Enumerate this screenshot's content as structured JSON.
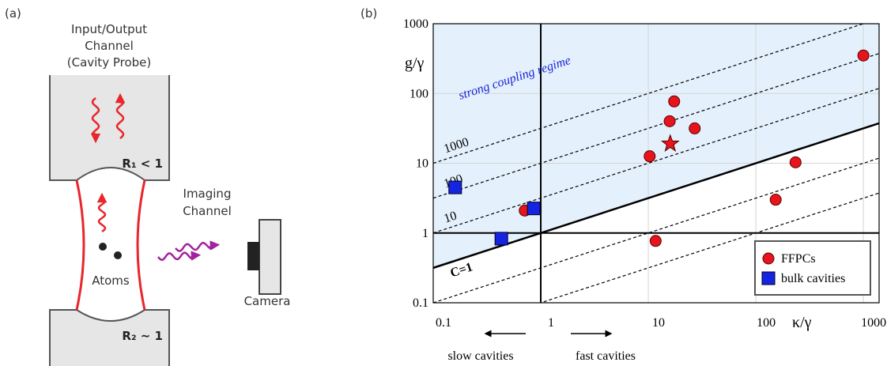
{
  "panel_a": {
    "label": "(a)",
    "io_channel": [
      "Input/Output",
      "Channel",
      "(Cavity Probe)"
    ],
    "r1": "R₁ < 1",
    "imaging_channel": [
      "Imaging",
      "Channel"
    ],
    "atoms": "Atoms",
    "camera": "Camera",
    "r2": "R₂ ~ 1"
  },
  "chart_data": {
    "type": "scatter",
    "panel_label": "(b)",
    "xlabel": "κ/γ",
    "ylabel": "g/γ",
    "xscale": "log",
    "yscale": "log",
    "xlim": [
      0.1,
      1400
    ],
    "ylim": [
      0.1,
      1000
    ],
    "xticks": [
      0.1,
      1,
      10,
      100,
      1000
    ],
    "yticks": [
      0.1,
      1,
      10,
      100,
      1000
    ],
    "grid": true,
    "region_label": "strong coupling regime",
    "cooperativity_lines": [
      {
        "C": 1,
        "label": "C=1",
        "style": "solid"
      },
      {
        "C": 10,
        "style": "dashed"
      },
      {
        "C": 100,
        "style": "dashed"
      },
      {
        "C": 1000,
        "style": "dashed"
      },
      {
        "C": 0.1,
        "style": "dashed"
      },
      {
        "C": 0.01,
        "style": "dashed"
      }
    ],
    "series": [
      {
        "name": "FFPCs",
        "color": "#e8141c",
        "marker": "circle",
        "x": [
          0.71,
          10.3,
          11.7,
          15.8,
          17.4,
          27,
          16,
          153,
          234,
          1000
        ],
        "values": [
          2.1,
          12.6,
          0.77,
          40,
          77,
          31.6,
          19,
          3.0,
          10.3,
          350
        ],
        "markers": [
          "circle",
          "circle",
          "circle",
          "circle",
          "circle",
          "circle",
          "star",
          "circle",
          "circle",
          "circle"
        ]
      },
      {
        "name": "bulk cavities",
        "color": "#1424e0",
        "marker": "square",
        "x": [
          0.16,
          0.43,
          0.86
        ],
        "values": [
          4.5,
          0.83,
          2.25
        ]
      }
    ],
    "legend": "lower right",
    "annotations": {
      "slow": "slow cavities",
      "fast": "fast cavities"
    }
  }
}
